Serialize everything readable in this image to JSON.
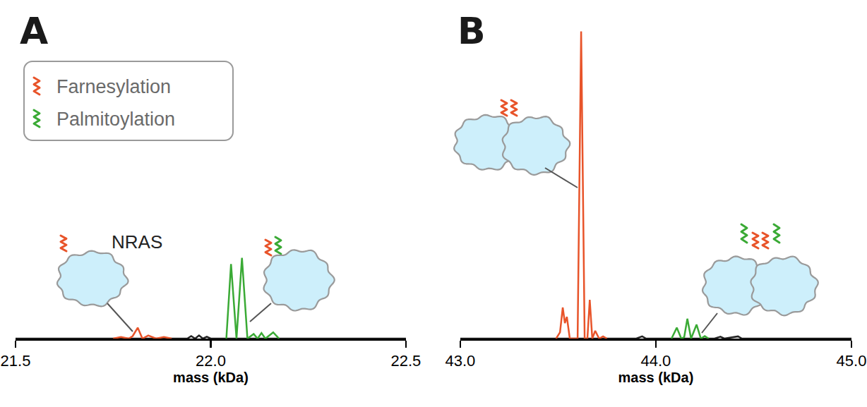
{
  "chart_data": [
    {
      "type": "line",
      "panel_label": "A",
      "xlabel": "mass (kDa)",
      "xlim": [
        21.5,
        22.5
      ],
      "xticks": [
        21.5,
        {
          "value": 22,
          "label": "22.0"
        },
        22.5
      ],
      "ylim": [
        0,
        100
      ],
      "tick_labels": "x",
      "legend": "top left",
      "annotations": [
        "NRAS"
      ],
      "series": [
        {
          "color": "#222222",
          "x": [
            21.5,
            21.94,
            21.95,
            21.96,
            21.97,
            21.98,
            21.99,
            22.0,
            22.5
          ],
          "values": [
            0,
            0,
            0.8,
            0,
            1,
            0,
            0.6,
            0,
            0
          ]
        },
        {
          "name": "Farnesylation",
          "color": "#e8542a",
          "x": [
            21.75,
            21.77,
            21.79,
            21.8,
            21.813,
            21.825,
            21.84,
            21.86,
            21.88,
            21.9
          ],
          "values": [
            0,
            0.5,
            0,
            0.8,
            3.5,
            0,
            1,
            0,
            0.5,
            0
          ]
        },
        {
          "name": "Palmitoylation",
          "color": "#3aaa35",
          "x": [
            22.04,
            22.052,
            22.066,
            22.08,
            22.094,
            22.11,
            22.12,
            22.13,
            22.14,
            22.16,
            22.175
          ],
          "values": [
            0,
            24,
            0,
            26,
            0,
            1.5,
            0,
            1.8,
            0,
            2,
            0
          ]
        }
      ]
    },
    {
      "type": "line",
      "panel_label": "B",
      "xlabel": "mass (kDa)",
      "xlim": [
        43,
        45
      ],
      "xticks": [
        {
          "value": 43,
          "label": "43.0"
        },
        {
          "value": 44,
          "label": "44.0"
        },
        {
          "value": 45,
          "label": "45.0"
        }
      ],
      "ylim": [
        0,
        100
      ],
      "tick_labels": "x",
      "series": [
        {
          "color": "#222222",
          "x": [
            43,
            43.9,
            43.93,
            43.95,
            44.3,
            44.33,
            44.35,
            44.42,
            44.44,
            45
          ],
          "values": [
            0,
            0,
            0.7,
            0,
            0,
            0.6,
            0,
            0.7,
            0,
            0
          ]
        },
        {
          "name": "Farnesylation",
          "color": "#e8542a",
          "x": [
            43.49,
            43.51,
            43.524,
            43.535,
            43.545,
            43.56,
            43.6,
            43.618,
            43.636,
            43.65,
            43.662,
            43.675,
            43.69,
            43.71,
            43.73,
            43.75
          ],
          "values": [
            0,
            2,
            10,
            5,
            7,
            0,
            0,
            99,
            0,
            0,
            12.5,
            0,
            2.5,
            0,
            0.7,
            0
          ]
        },
        {
          "name": "Palmitoylation",
          "color": "#3aaa35",
          "x": [
            44.08,
            44.107,
            44.13,
            44.145,
            44.161,
            44.18,
            44.208,
            44.23,
            44.25,
            44.27
          ],
          "values": [
            0,
            3.5,
            0,
            0.5,
            6.4,
            0,
            4.5,
            0,
            0.8,
            0
          ]
        }
      ]
    }
  ]
}
